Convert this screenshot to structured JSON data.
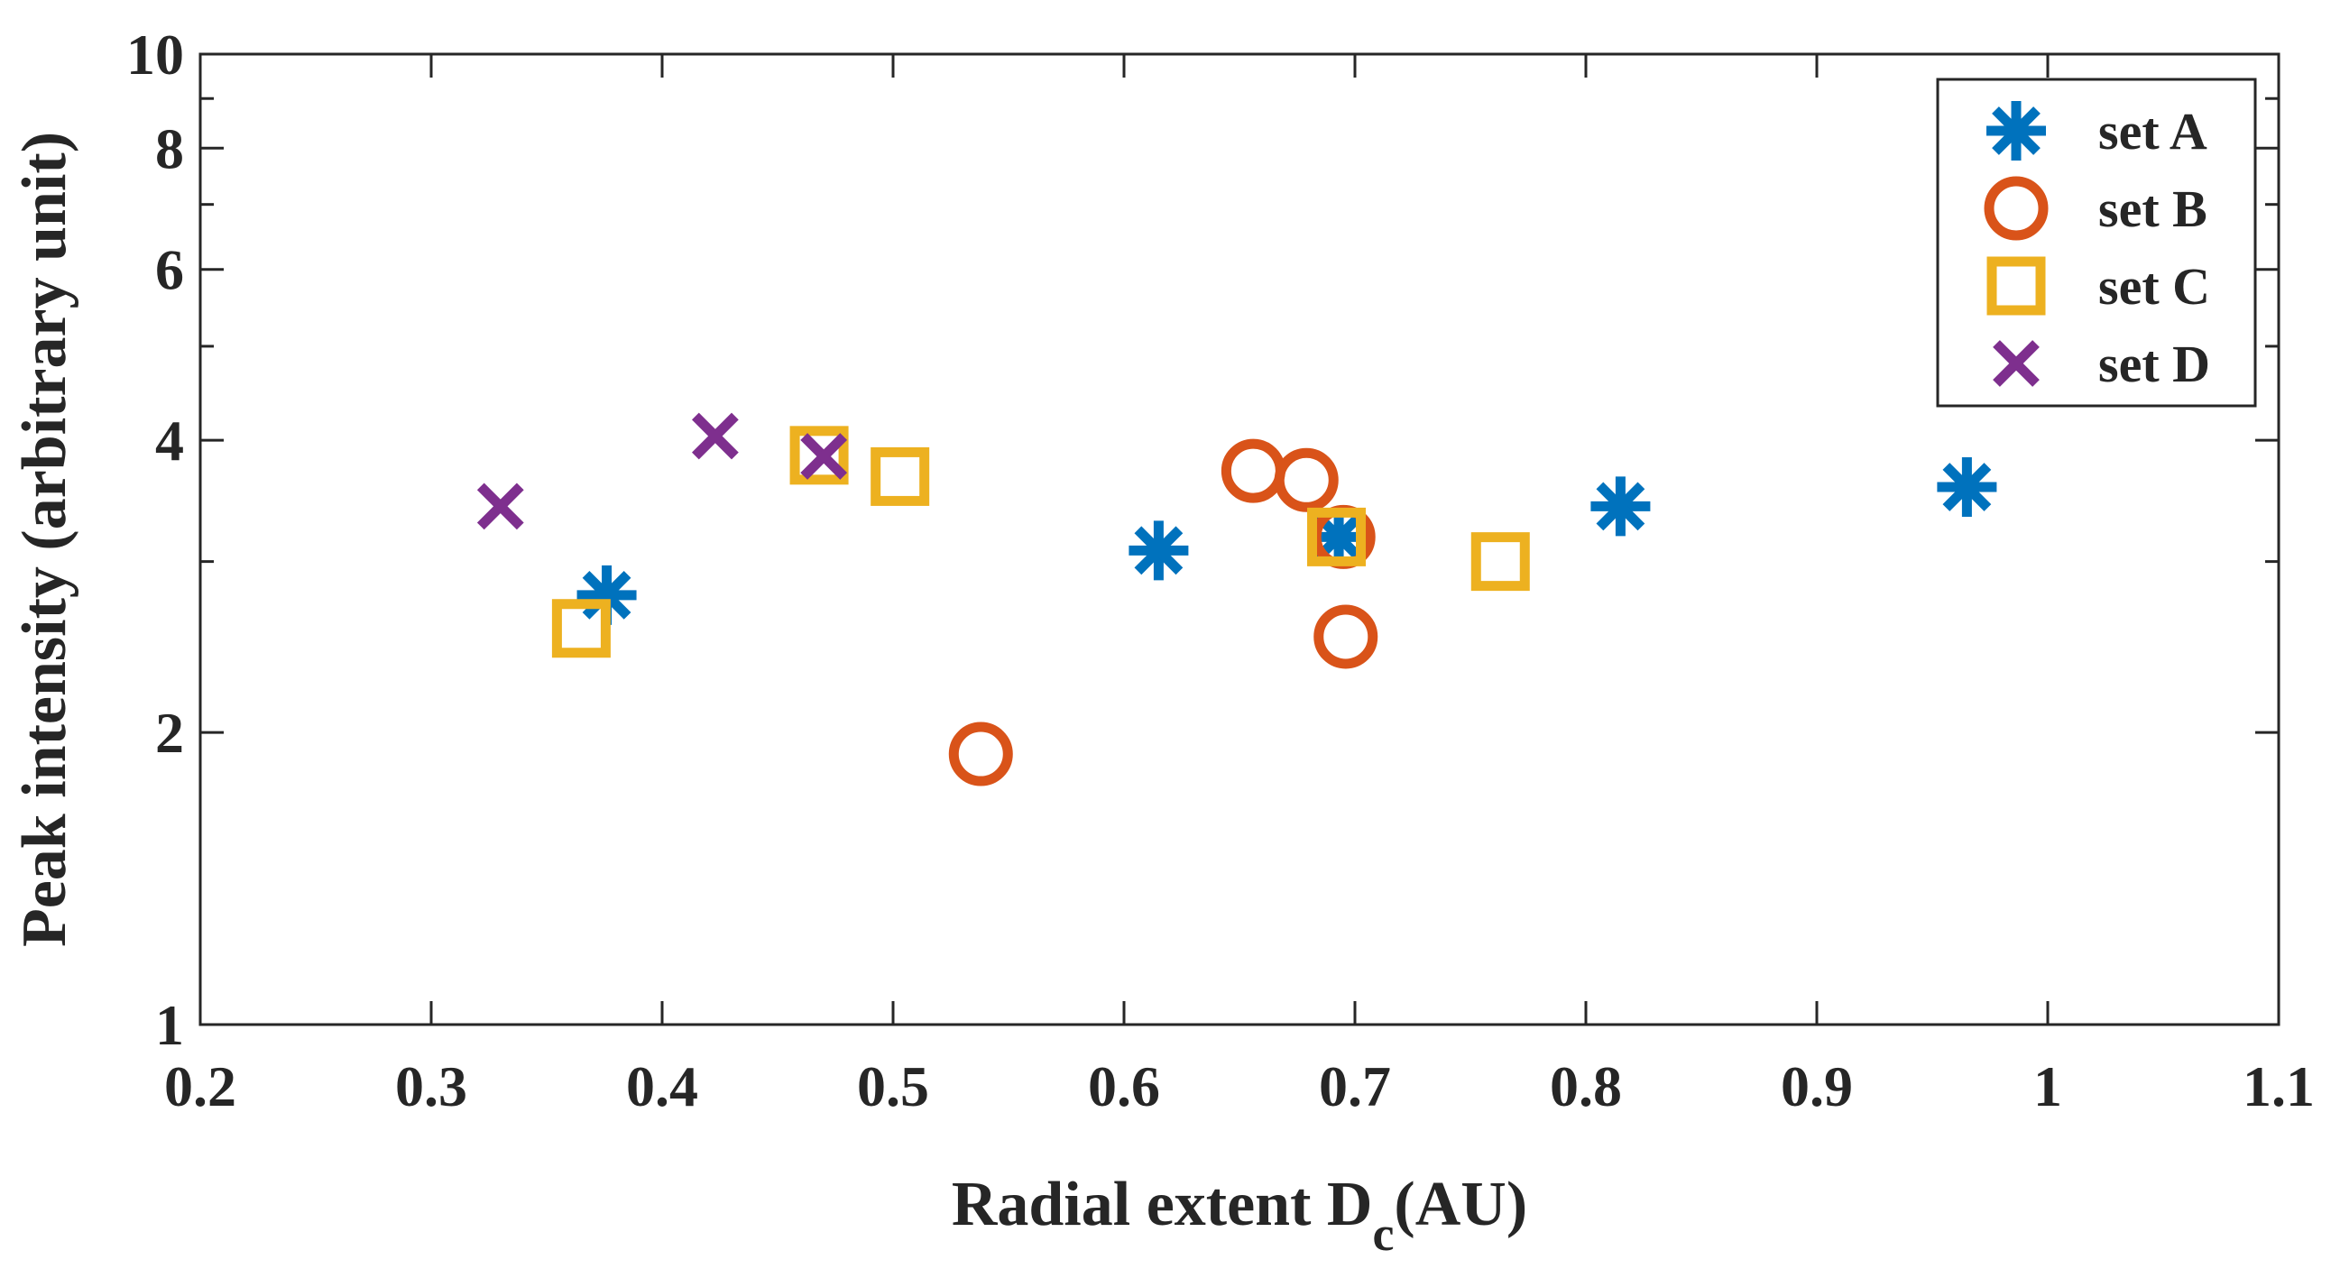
{
  "chart_data": {
    "type": "scatter",
    "xlabel": "Radial extent D",
    "xlabel_sub": "c",
    "xlabel_unit": "(AU)",
    "ylabel": "Peak intensity (arbitrary unit)",
    "xlim": [
      0.2,
      1.1
    ],
    "ylim": [
      1,
      10
    ],
    "yscale": "log",
    "x_ticks": [
      0.2,
      0.3,
      0.4,
      0.5,
      0.6,
      0.7,
      0.8,
      0.9,
      1.0,
      1.1
    ],
    "x_tick_labels": [
      "0.2",
      "0.3",
      "0.4",
      "0.5",
      "0.6",
      "0.7",
      "0.8",
      "0.9",
      "1",
      "1.1"
    ],
    "y_ticks": [
      1,
      2,
      4,
      6,
      8,
      10
    ],
    "y_tick_labels": [
      "1",
      "2",
      "4",
      "6",
      "8",
      "10"
    ],
    "y_minor_ticks": [
      3,
      5,
      7,
      9
    ],
    "legend_position": "top-right",
    "series": [
      {
        "name": "set A",
        "marker": "asterisk",
        "color": "#0072BD",
        "points": [
          [
            0.376,
            2.77
          ],
          [
            0.615,
            3.08
          ],
          [
            0.693,
            3.18
          ],
          [
            0.815,
            3.42
          ],
          [
            0.965,
            3.58
          ]
        ]
      },
      {
        "name": "set B",
        "marker": "circle",
        "color": "#D95319",
        "points": [
          [
            0.538,
            1.9
          ],
          [
            0.656,
            3.72
          ],
          [
            0.679,
            3.64
          ],
          [
            0.695,
            3.18
          ],
          [
            0.696,
            2.51
          ]
        ]
      },
      {
        "name": "set C",
        "marker": "square",
        "color": "#EDB120",
        "points": [
          [
            0.365,
            2.56
          ],
          [
            0.468,
            3.86
          ],
          [
            0.503,
            3.67
          ],
          [
            0.692,
            3.18
          ],
          [
            0.763,
            3.0
          ]
        ]
      },
      {
        "name": "set D",
        "marker": "x",
        "color": "#7E2F8E",
        "points": [
          [
            0.33,
            3.42
          ],
          [
            0.423,
            4.04
          ],
          [
            0.47,
            3.85
          ]
        ]
      }
    ]
  }
}
